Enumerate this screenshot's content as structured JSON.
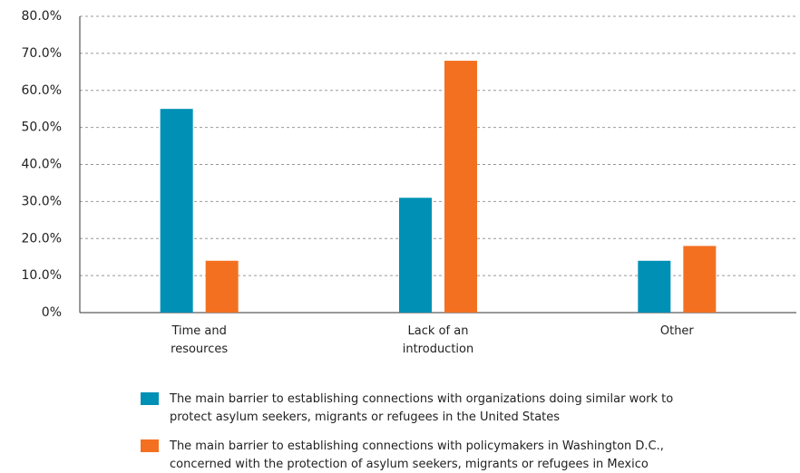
{
  "chart_data": {
    "type": "bar",
    "categories": [
      "Time and resources",
      "Lack of an introduction",
      "Other"
    ],
    "series": [
      {
        "name": "The main barrier to establishing connections with organizations doing similar work to protect asylum seekers, migrants or refugees in the United States",
        "color": "#0090b5",
        "values": [
          55,
          31,
          14
        ]
      },
      {
        "name": "The main barrier to establishing connections with policymakers in Washington D.C., concerned with the protection of asylum seekers, migrants or refugees in Mexico",
        "color": "#f37021",
        "values": [
          14,
          68,
          18
        ]
      }
    ],
    "ylim": [
      0,
      80
    ],
    "yticks": [
      {
        "value": 0,
        "label": "0%"
      },
      {
        "value": 10,
        "label": "10.0%"
      },
      {
        "value": 20,
        "label": "20.0%"
      },
      {
        "value": 30,
        "label": "30.0%"
      },
      {
        "value": 40,
        "label": "40.0%"
      },
      {
        "value": 50,
        "label": "50.0%"
      },
      {
        "value": 60,
        "label": "60.0%"
      },
      {
        "value": 70,
        "label": "70.0%"
      },
      {
        "value": 80,
        "label": "80.0%"
      }
    ],
    "grid": true,
    "legend": "bottom"
  }
}
